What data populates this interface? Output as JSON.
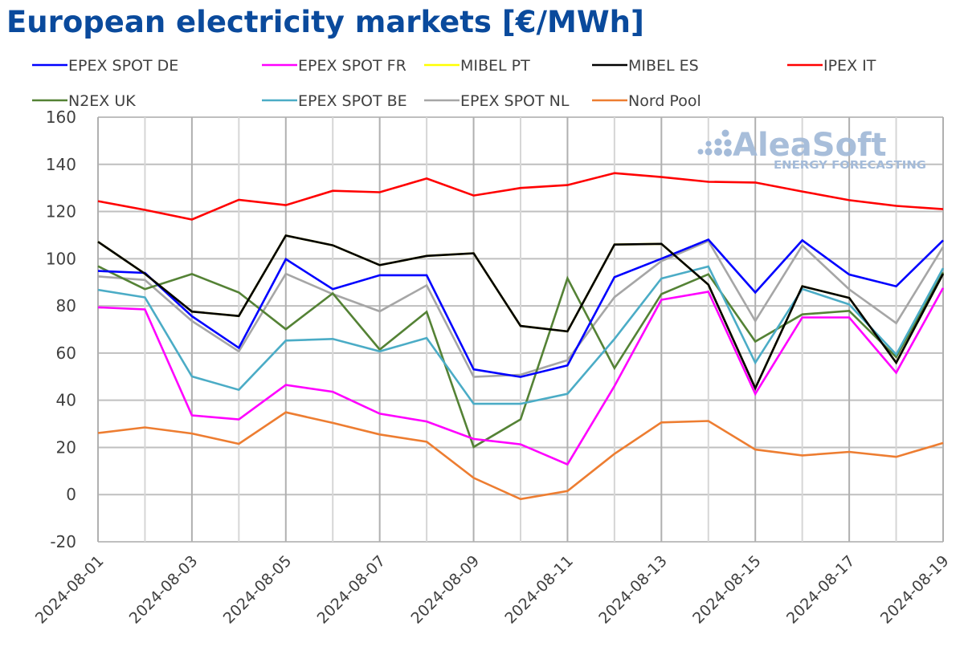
{
  "chart_data": {
    "type": "line",
    "title": "European electricity markets [€/MWh]",
    "xlabel": "",
    "ylabel": "",
    "ylim": [
      -20,
      160
    ],
    "yticks": [
      -20,
      0,
      20,
      40,
      60,
      80,
      100,
      120,
      140,
      160
    ],
    "grid": true,
    "legend_position": "top",
    "x": [
      "2024-08-01",
      "2024-08-02",
      "2024-08-03",
      "2024-08-04",
      "2024-08-05",
      "2024-08-06",
      "2024-08-07",
      "2024-08-08",
      "2024-08-09",
      "2024-08-10",
      "2024-08-11",
      "2024-08-12",
      "2024-08-13",
      "2024-08-14",
      "2024-08-15",
      "2024-08-16",
      "2024-08-17",
      "2024-08-18",
      "2024-08-19"
    ],
    "xtick_labels": [
      "2024-08-01",
      "2024-08-03",
      "2024-08-05",
      "2024-08-07",
      "2024-08-09",
      "2024-08-11",
      "2024-08-13",
      "2024-08-15",
      "2024-08-17",
      "2024-08-19"
    ],
    "series": [
      {
        "name": "EPEX SPOT DE",
        "color": "#0000ff",
        "values": [
          94.8,
          94.0,
          75.6,
          62.2,
          99.8,
          87.1,
          93.0,
          93.0,
          53.1,
          49.9,
          54.8,
          92.2,
          100.0,
          108.1,
          85.7,
          107.8,
          93.3,
          88.3,
          107.8
        ]
      },
      {
        "name": "EPEX SPOT FR",
        "color": "#ff00ff",
        "values": [
          79.4,
          78.5,
          33.6,
          31.9,
          46.5,
          43.6,
          34.3,
          31.0,
          23.6,
          21.3,
          12.8,
          46.0,
          82.6,
          86.0,
          42.7,
          75.1,
          75.1,
          51.7,
          87.6
        ]
      },
      {
        "name": "MIBEL PT",
        "color": "#ffff00",
        "values": [
          107.2,
          93.6,
          77.6,
          75.7,
          109.8,
          105.7,
          97.3,
          101.2,
          102.3,
          71.5,
          69.2,
          106.0,
          106.3,
          89.0,
          45.1,
          88.3,
          83.4,
          55.9,
          93.6
        ]
      },
      {
        "name": "MIBEL ES",
        "color": "#000000",
        "values": [
          107.2,
          93.6,
          77.6,
          75.7,
          109.8,
          105.7,
          97.3,
          101.2,
          102.3,
          71.5,
          69.2,
          106.0,
          106.3,
          89.0,
          45.1,
          88.3,
          83.4,
          55.9,
          93.6
        ]
      },
      {
        "name": "IPEX IT",
        "color": "#ff0000",
        "values": [
          124.4,
          120.7,
          116.6,
          125.0,
          122.7,
          128.8,
          128.2,
          134.0,
          126.8,
          130.0,
          131.2,
          136.3,
          134.6,
          132.6,
          132.3,
          128.5,
          124.8,
          122.4,
          121.0
        ]
      },
      {
        "name": "N2EX UK",
        "color": "#548235",
        "values": [
          96.8,
          87.1,
          93.5,
          85.7,
          70.1,
          85.3,
          61.5,
          77.5,
          20.2,
          31.9,
          91.7,
          53.6,
          85.0,
          93.4,
          64.9,
          76.4,
          77.9,
          58.3,
          94.2
        ]
      },
      {
        "name": "EPEX SPOT BE",
        "color": "#4bacc6",
        "values": [
          86.8,
          83.6,
          50.1,
          44.4,
          65.3,
          66.0,
          60.7,
          66.4,
          38.5,
          38.5,
          42.7,
          66.0,
          91.6,
          96.7,
          55.9,
          87.2,
          80.6,
          59.4,
          96.0
        ]
      },
      {
        "name": "EPEX SPOT NL",
        "color": "#a6a6a6",
        "values": [
          92.5,
          91.0,
          73.6,
          60.7,
          93.6,
          85.0,
          77.7,
          88.7,
          49.9,
          50.8,
          57.0,
          83.7,
          99.0,
          107.5,
          73.6,
          105.6,
          87.0,
          72.7,
          105.0
        ]
      },
      {
        "name": "Nord Pool",
        "color": "#ed7d31",
        "values": [
          26.1,
          28.5,
          25.9,
          21.5,
          34.9,
          30.4,
          25.5,
          22.4,
          7.1,
          -1.9,
          1.5,
          17.3,
          30.6,
          31.2,
          19.1,
          16.6,
          18.1,
          16.0,
          21.9
        ]
      }
    ],
    "draw_order": [
      "MIBEL PT",
      "EPEX SPOT NL",
      "N2EX UK",
      "EPEX SPOT BE",
      "EPEX SPOT FR",
      "Nord Pool",
      "EPEX SPOT DE",
      "MIBEL ES",
      "IPEX IT"
    ]
  },
  "watermark": {
    "brand": "AleaSoft",
    "tagline": "ENERGY FORECASTING",
    "color": "#a4bbd9"
  },
  "colors": {
    "title": "#0a4a9c",
    "grid": "#bfbfbf",
    "text": "#404040"
  }
}
